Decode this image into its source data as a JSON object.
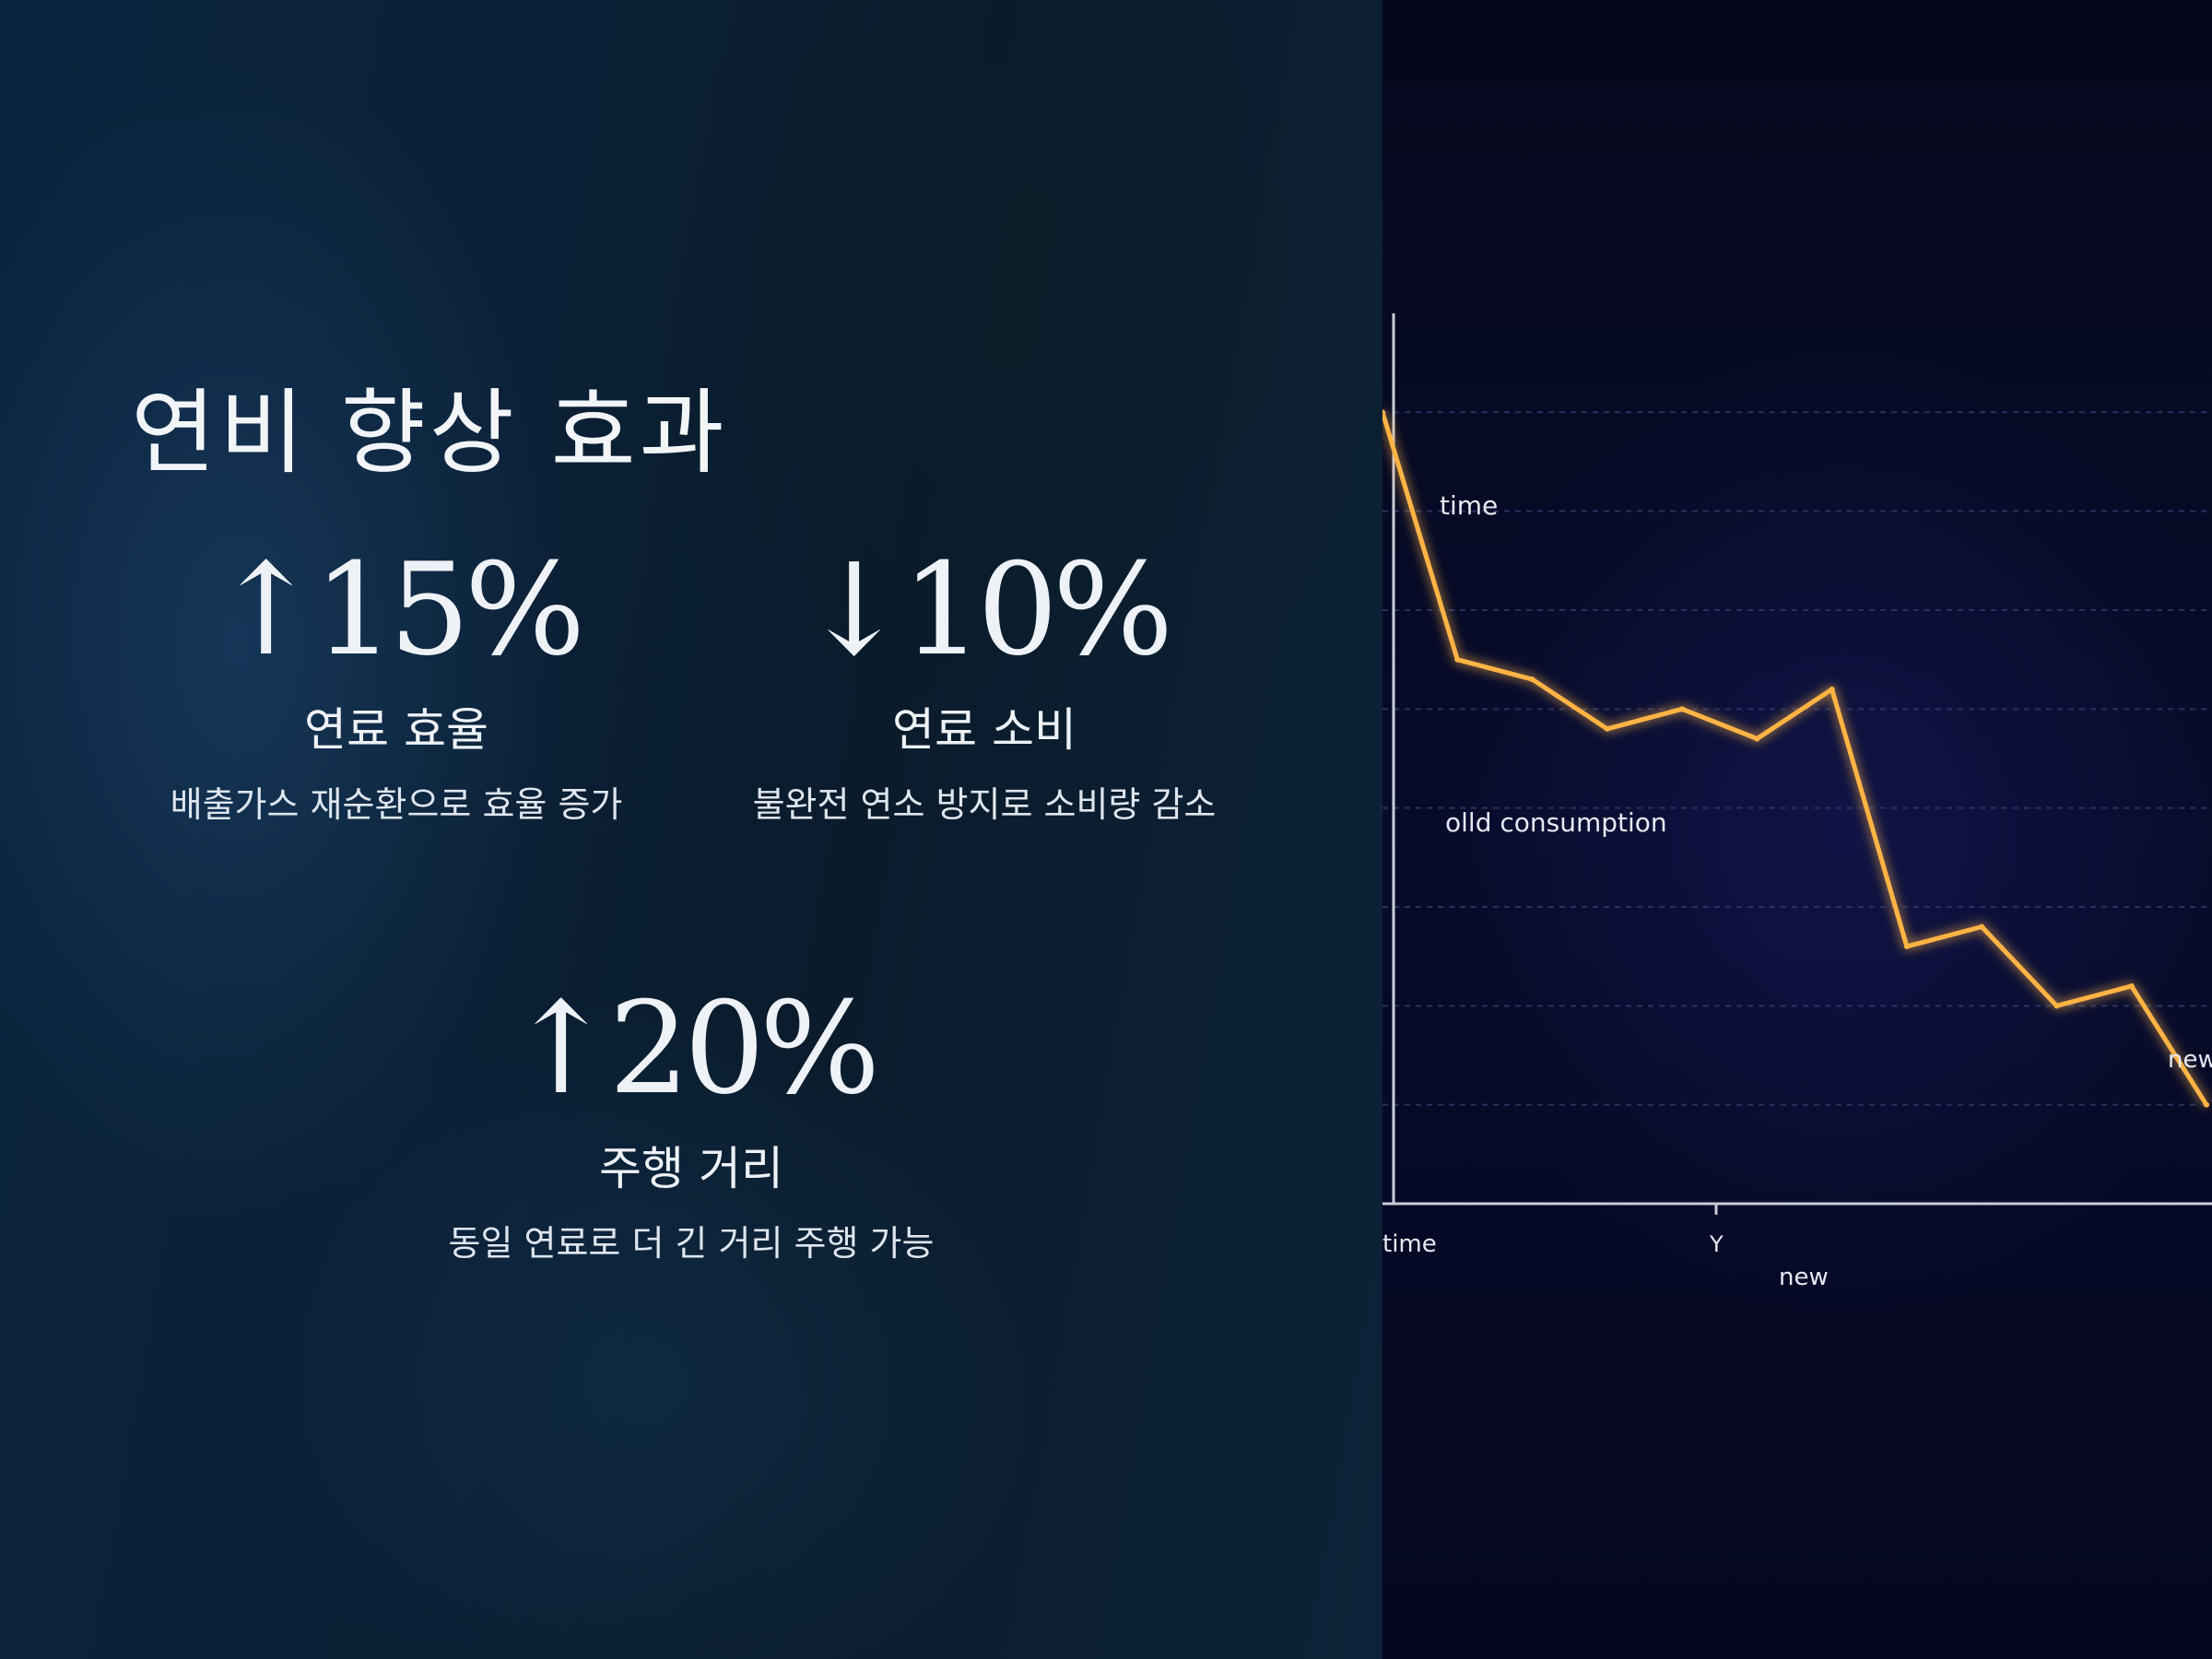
{
  "title": "연비 향상 효과",
  "stats": [
    {
      "value": "↑15%",
      "label": "연료 효율",
      "desc": "배출가스 재순환으로 효율 증가"
    },
    {
      "value": "↓10%",
      "label": "연료 소비",
      "desc": "불완전 연소 방지로 소비량 감소"
    },
    {
      "value": "↑20%",
      "label": "주행 거리",
      "desc": "동일 연료로 더 긴 거리 주행 가능"
    }
  ],
  "chart_data": {
    "type": "line",
    "annotations": [
      "time",
      "olld consumption",
      "new"
    ],
    "x_tick_labels": [
      "time",
      "Y"
    ],
    "xlabel": "new",
    "line_color": "#ffb444",
    "series": [
      {
        "values": [
          100,
          75,
          73,
          68,
          70,
          67,
          72,
          46,
          48,
          40,
          42,
          30
        ]
      }
    ],
    "ylim": [
      20,
      110
    ],
    "grid": true
  }
}
